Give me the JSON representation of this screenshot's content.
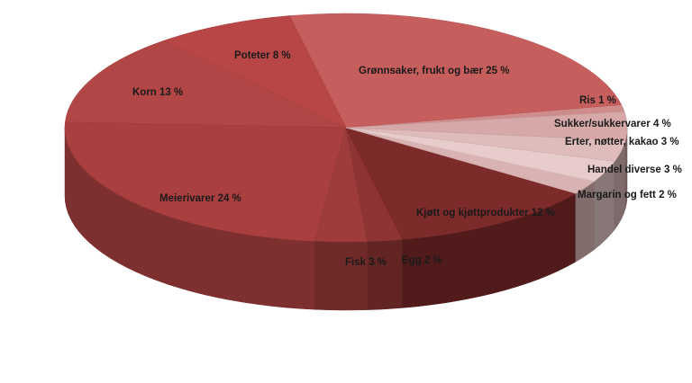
{
  "chart_data": {
    "type": "pie",
    "title": "",
    "three_d": true,
    "start_angle_deg": -8,
    "direction": "counterclockwise",
    "slices": [
      {
        "label": "Ris 1 %",
        "value": 1,
        "color": "#cf8c8c"
      },
      {
        "label": "Grønnsaker, frukt og bær 25 %",
        "value": 25,
        "color": "#c75e5e"
      },
      {
        "label": "Poteter 8 %",
        "value": 8,
        "color": "#b84646"
      },
      {
        "label": "Korn 13 %",
        "value": 13,
        "color": "#b24545"
      },
      {
        "label": "Meierivarer 24 %",
        "value": 24,
        "color": "#aa3f3f"
      },
      {
        "label": "Fisk 3 %",
        "value": 3,
        "color": "#9e3b3b"
      },
      {
        "label": "Egg 2 %",
        "value": 2,
        "color": "#8e3434"
      },
      {
        "label": "Kjøtt og kjøttprodukter 12 %",
        "value": 12,
        "color": "#7d2a2a"
      },
      {
        "label": "Margarin og fett 2 %",
        "value": 2,
        "color": "#d9b3b3"
      },
      {
        "label": "Handel diverse 3 %",
        "value": 3,
        "color": "#e8cccc"
      },
      {
        "label": "Erter, nøtter, kakao 3 %",
        "value": 3,
        "color": "#dfbcbc"
      },
      {
        "label": "Sukker/sukkervarer 4 %",
        "value": 4,
        "color": "#d6a8a8"
      }
    ]
  }
}
